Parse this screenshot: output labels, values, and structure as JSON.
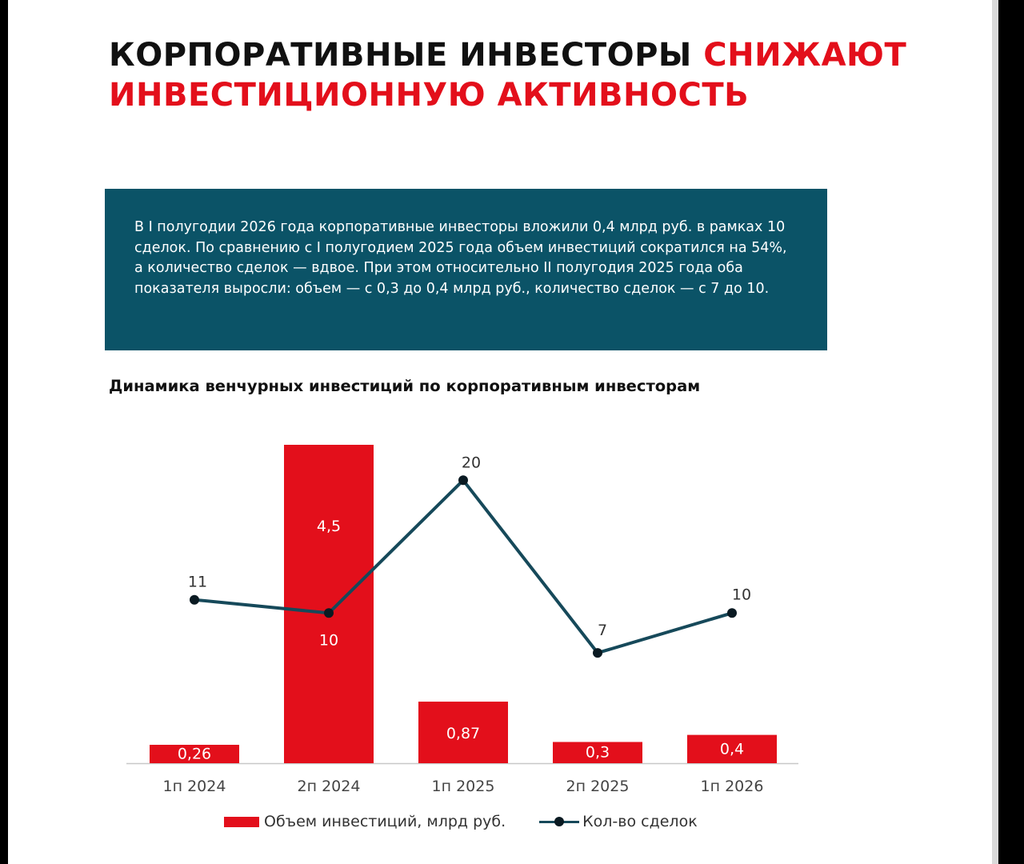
{
  "headline": {
    "dark": "КОРПОРАТИВНЫЕ ИНВЕСТОРЫ ",
    "accent_1": "СНИЖАЮТ",
    "accent_2": "ИНВЕСТИЦИОННУЮ АКТИВНОСТЬ"
  },
  "info_text": "В I полугодии 2026 года корпоративные инвесторы вложили 0,4 млрд руб. в рамках 10 сделок. По сравнению с I полугодием 2025 года объем инвестиций сократился на 54%, а количество сделок — вдвое. При этом относительно II полугодия 2025 года оба показателя выросли: объем — с 0,3 до 0,4 млрд руб., количество сделок — с 7 до 10.",
  "colors": {
    "accent": "#e30f1b",
    "info_box": "#0b5367",
    "line": "#16495a",
    "marker": "#0a1a22"
  },
  "chart_data": {
    "type": "bar",
    "title": "Динамика венчурных инвестиций по корпоративным инвесторам",
    "categories": [
      "1п 2024",
      "2п 2024",
      "1п 2025",
      "2п 2025",
      "1п 2026"
    ],
    "series": [
      {
        "name": "Объем инвестиций, млрд руб.",
        "type": "bar",
        "values": [
          0.26,
          4.5,
          0.87,
          0.3,
          0.4
        ],
        "labels": [
          "0,26",
          "4,5",
          "0,87",
          "0,3",
          "0,4"
        ],
        "color": "#e30f1b"
      },
      {
        "name": "Кол-во сделок",
        "type": "line",
        "values": [
          11,
          10,
          20,
          7,
          10
        ],
        "labels": [
          "11",
          "10",
          "20",
          "7",
          "10"
        ],
        "color": "#16495a"
      }
    ],
    "grid": false,
    "legend": "bottom"
  }
}
